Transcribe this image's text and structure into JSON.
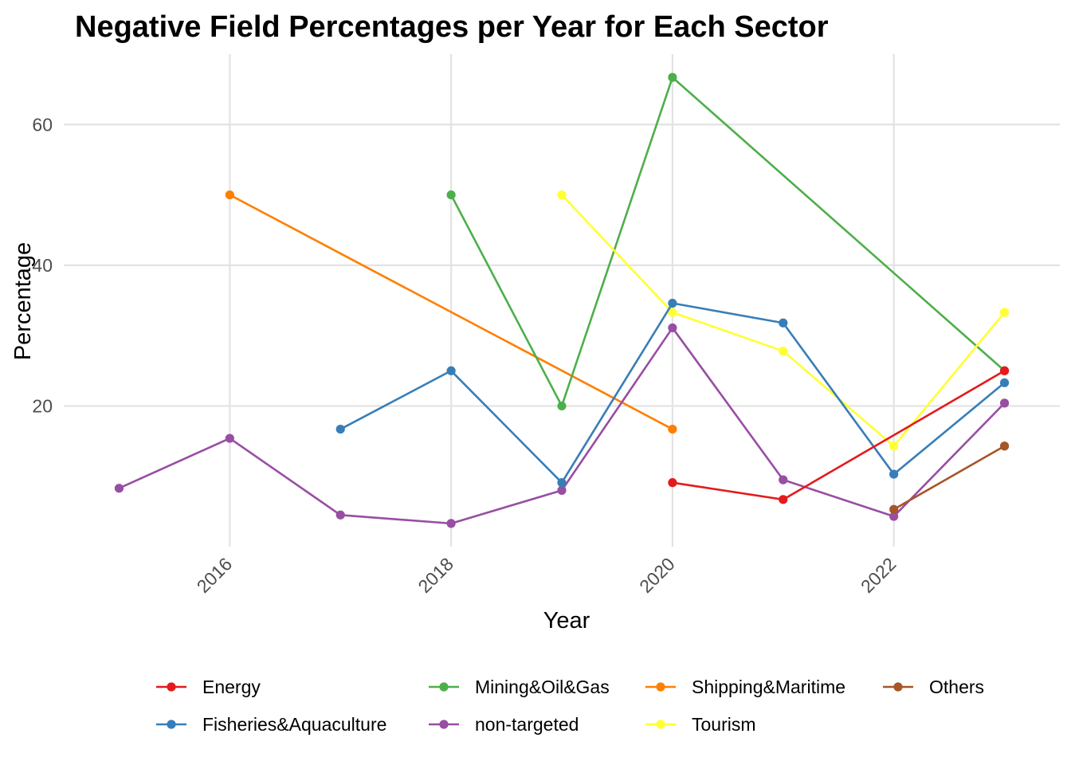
{
  "chart_data": {
    "type": "line",
    "title": "Negative Field Percentages per Year for Each Sector",
    "xlabel": "Year",
    "ylabel": "Percentage",
    "xlim": [
      2014.5,
      2023.5
    ],
    "ylim": [
      0,
      70
    ],
    "x_ticks": [
      2016,
      2018,
      2020,
      2022
    ],
    "y_ticks": [
      20,
      40,
      60
    ],
    "x_tick_labels": [
      "2016",
      "2018",
      "2020",
      "2022"
    ],
    "y_tick_labels": [
      "20",
      "40",
      "60"
    ],
    "grid": true,
    "legend_position": "bottom",
    "series": [
      {
        "name": "Energy",
        "color": "#e41a1c",
        "x": [
          2020,
          2021,
          2023
        ],
        "y": [
          9.1,
          6.7,
          25.0
        ]
      },
      {
        "name": "Fisheries&Aquaculture",
        "color": "#377eb8",
        "x": [
          2017,
          2018,
          2019,
          2020,
          2021,
          2022,
          2023
        ],
        "y": [
          16.7,
          25.0,
          9.1,
          34.6,
          31.8,
          10.3,
          23.3
        ]
      },
      {
        "name": "Mining&Oil&Gas",
        "color": "#4daf4a",
        "x": [
          2018,
          2019,
          2020,
          2023
        ],
        "y": [
          50.0,
          20.0,
          66.7,
          25.0
        ]
      },
      {
        "name": "non-targeted",
        "color": "#984ea3",
        "x": [
          2015,
          2016,
          2017,
          2018,
          2019,
          2020,
          2021,
          2022,
          2023
        ],
        "y": [
          8.3,
          15.4,
          4.5,
          3.3,
          8.0,
          31.1,
          9.5,
          4.3,
          20.4
        ]
      },
      {
        "name": "Shipping&Maritime",
        "color": "#ff7f00",
        "x": [
          2016,
          2020
        ],
        "y": [
          50.0,
          16.7
        ]
      },
      {
        "name": "Tourism",
        "color": "#ffff33",
        "x": [
          2019,
          2020,
          2021,
          2022,
          2023
        ],
        "y": [
          50.0,
          33.3,
          27.8,
          14.3,
          33.3
        ]
      },
      {
        "name": "Others",
        "color": "#a65628",
        "x": [
          2022,
          2023
        ],
        "y": [
          5.3,
          14.3
        ]
      }
    ],
    "legend_order": [
      "Energy",
      "Fisheries&Aquaculture",
      "Mining&Oil&Gas",
      "non-targeted",
      "Shipping&Maritime",
      "Tourism",
      "Others"
    ]
  }
}
